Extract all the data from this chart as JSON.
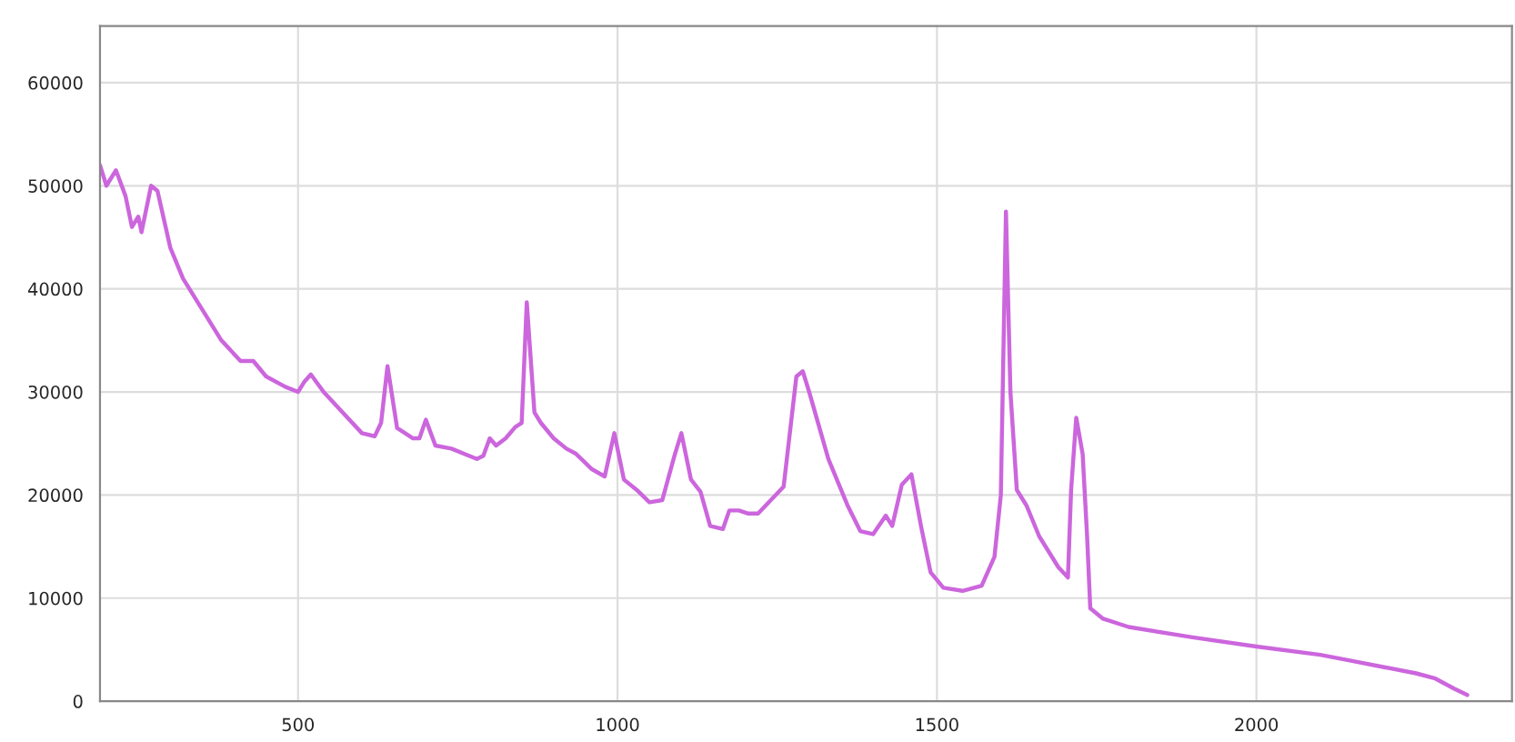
{
  "chart_data": {
    "type": "line",
    "xlim": [
      190,
      2400
    ],
    "ylim": [
      0,
      65500
    ],
    "xticks": [
      500,
      1000,
      1500,
      2000
    ],
    "yticks": [
      0,
      10000,
      20000,
      30000,
      40000,
      50000,
      60000
    ],
    "grid": true,
    "marker": "none",
    "line_style": "solid",
    "series": [
      {
        "color": "#cc66dd",
        "x": [
          190,
          200,
          215,
          230,
          240,
          250,
          255,
          270,
          280,
          300,
          320,
          350,
          380,
          410,
          430,
          450,
          480,
          500,
          510,
          520,
          540,
          570,
          600,
          620,
          630,
          640,
          655,
          680,
          690,
          700,
          715,
          740,
          780,
          790,
          800,
          810,
          825,
          840,
          850,
          858,
          870,
          880,
          900,
          920,
          935,
          960,
          980,
          995,
          1010,
          1030,
          1050,
          1070,
          1090,
          1100,
          1115,
          1130,
          1145,
          1165,
          1175,
          1190,
          1205,
          1220,
          1240,
          1260,
          1280,
          1290,
          1300,
          1330,
          1360,
          1380,
          1400,
          1420,
          1430,
          1445,
          1460,
          1475,
          1490,
          1510,
          1540,
          1570,
          1590,
          1600,
          1608,
          1615,
          1625,
          1640,
          1660,
          1690,
          1705,
          1710,
          1718,
          1728,
          1735,
          1740,
          1760,
          1800,
          1900,
          2000,
          2100,
          2150,
          2200,
          2250,
          2280,
          2310,
          2330
        ],
        "values": [
          52000,
          50000,
          51500,
          49000,
          46000,
          47000,
          45500,
          50000,
          49500,
          44000,
          41000,
          38000,
          35000,
          33000,
          33000,
          31500,
          30500,
          30000,
          31000,
          31700,
          30000,
          28000,
          26000,
          25700,
          27000,
          32500,
          26500,
          25500,
          25500,
          27300,
          24800,
          24500,
          23500,
          23800,
          25500,
          24800,
          25500,
          26600,
          27000,
          38700,
          28000,
          27000,
          25500,
          24500,
          24000,
          22500,
          21800,
          26000,
          21500,
          20500,
          19300,
          19500,
          24000,
          26000,
          21500,
          20300,
          17000,
          16700,
          18500,
          18500,
          18200,
          18200,
          19500,
          20800,
          31500,
          32000,
          30000,
          23500,
          19000,
          16500,
          16200,
          18000,
          17000,
          21000,
          22000,
          17000,
          12500,
          11000,
          10700,
          11200,
          14000,
          20000,
          47500,
          30000,
          20500,
          19000,
          16000,
          13000,
          12000,
          20500,
          27500,
          24000,
          16000,
          9000,
          8000,
          7200,
          6200,
          5300,
          4500,
          3900,
          3300,
          2700,
          2200,
          1200,
          600
        ]
      }
    ]
  }
}
